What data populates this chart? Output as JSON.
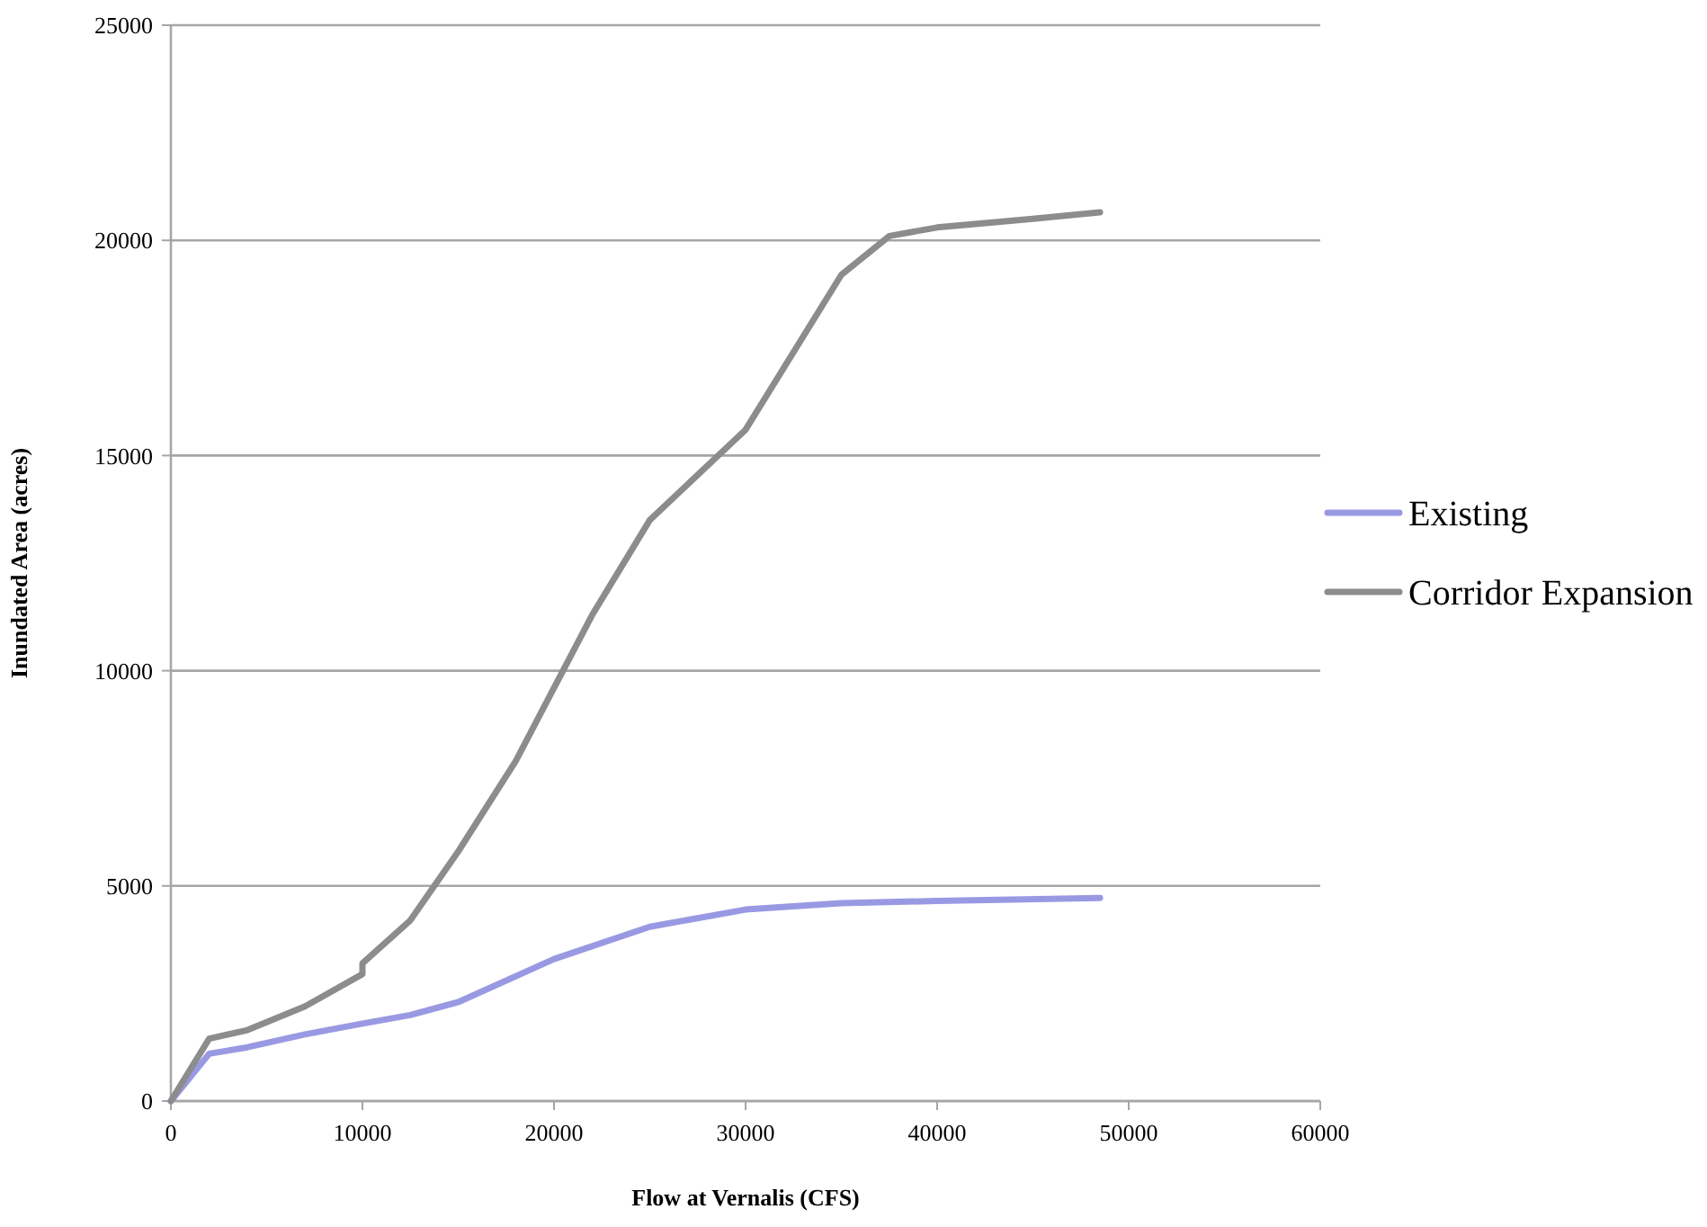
{
  "chart_data": {
    "type": "line",
    "xlabel": "Flow at Vernalis (CFS)",
    "ylabel": "Inundated Area (acres)",
    "xlim": [
      0,
      60000
    ],
    "xticks": [
      0,
      10000,
      20000,
      30000,
      40000,
      50000,
      60000
    ],
    "ylim": [
      0,
      25000
    ],
    "yticks": [
      0,
      5000,
      10000,
      15000,
      20000,
      25000
    ],
    "grid": "y",
    "legend": "right",
    "line_style": "solid",
    "series": [
      {
        "name": "Existing",
        "color": "#9999e3",
        "x": [
          0,
          2000,
          4000,
          7000,
          10000,
          12500,
          15000,
          20000,
          25000,
          30000,
          35000,
          40000,
          48500
        ],
        "values": [
          0,
          1100,
          1250,
          1550,
          1800,
          2000,
          2300,
          3300,
          4050,
          4450,
          4600,
          4650,
          4720
        ]
      },
      {
        "name": "Corridor Expansion",
        "color": "#8c8c8c",
        "x": [
          0,
          2000,
          4000,
          7000,
          10000,
          10000,
          12500,
          15000,
          18000,
          20000,
          22000,
          25000,
          30000,
          35000,
          37500,
          40000,
          45000,
          48500
        ],
        "values": [
          0,
          1450,
          1650,
          2200,
          2950,
          3200,
          4200,
          5800,
          7900,
          9600,
          11300,
          13500,
          15600,
          19200,
          20100,
          20300,
          20500,
          20650
        ]
      }
    ]
  }
}
